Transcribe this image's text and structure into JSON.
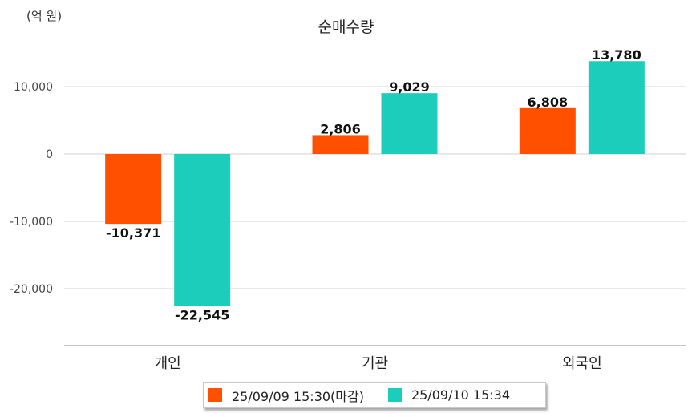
{
  "chart_data": {
    "type": "bar",
    "title": "순매수량",
    "unit": "(억 원)",
    "categories": [
      "개인",
      "기관",
      "외국인"
    ],
    "series": [
      {
        "name": "25/09/09 15:30(마감)",
        "color": "#ff5000",
        "values": [
          -10371,
          2806,
          6808
        ],
        "labels": [
          "-10,371",
          "2,806",
          "6,808"
        ]
      },
      {
        "name": "25/09/10 15:34",
        "color": "#1ccdbb",
        "values": [
          -22545,
          9029,
          13780
        ],
        "labels": [
          "-22,545",
          "9,029",
          "13,780"
        ]
      }
    ],
    "yticks": [
      10000,
      0,
      -10000,
      -20000
    ],
    "ytick_labels": [
      "10,000",
      "0",
      "-10,000",
      "-20,000"
    ],
    "ylim": [
      -28000,
      17000
    ],
    "grid": true,
    "legend_position": "bottom"
  }
}
